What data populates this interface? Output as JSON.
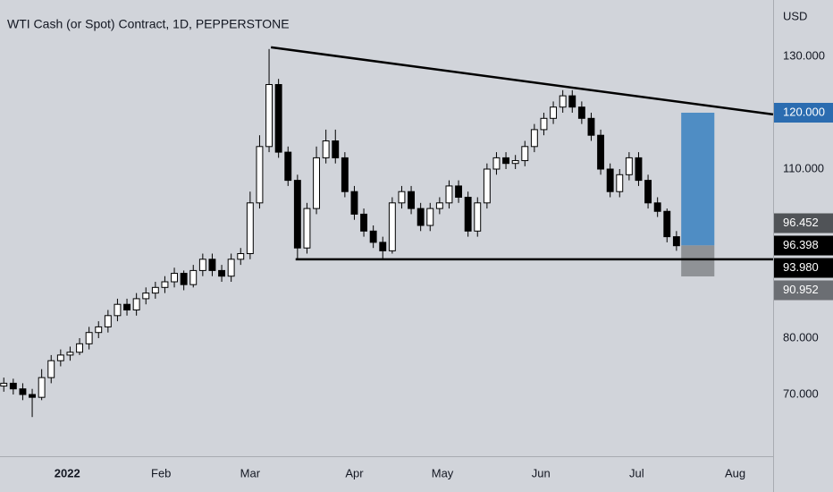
{
  "chart_data": {
    "type": "candlestick",
    "title": "WTI Cash (or Spot) Contract, 1D, PEPPERSTONE",
    "currency": "USD",
    "open": [
      71.5,
      72,
      71,
      70,
      69.5,
      73,
      76,
      77,
      77.5,
      79,
      81,
      82,
      84,
      86,
      85,
      87,
      88,
      89,
      90,
      91.5,
      89.5,
      92,
      94,
      92,
      91,
      94,
      95,
      104,
      114,
      125,
      113,
      108,
      96,
      103,
      112,
      115,
      112,
      106,
      102,
      99,
      97,
      95.5,
      104,
      106,
      103,
      100,
      103,
      104,
      107,
      105,
      99,
      104,
      110,
      112,
      111,
      111.5,
      114,
      117,
      119,
      121,
      123,
      121,
      119,
      116,
      110,
      106,
      109,
      112,
      108,
      104,
      102.5,
      98
    ],
    "high": [
      73,
      72.8,
      72,
      71,
      74.5,
      77,
      78,
      78.5,
      80,
      82,
      83,
      85,
      87,
      87,
      88,
      89,
      90,
      91,
      92.5,
      92,
      93,
      95,
      95,
      93,
      95,
      96,
      106,
      116,
      131.3,
      126,
      114,
      109,
      104,
      114,
      117,
      117,
      113,
      107,
      103,
      100,
      98,
      105,
      107,
      107,
      104,
      104,
      105,
      108,
      108,
      106,
      105,
      111,
      113,
      113,
      112.5,
      115,
      118,
      120,
      122,
      124,
      124,
      122,
      120,
      117,
      111,
      110,
      113,
      113,
      109,
      105,
      103,
      99
    ],
    "low": [
      70.5,
      70,
      69,
      66,
      69,
      72,
      75,
      76,
      77,
      78,
      80,
      81,
      83,
      84,
      84,
      86,
      87,
      88,
      89,
      88.5,
      89,
      91,
      91,
      90,
      90,
      93,
      94,
      103,
      113,
      112,
      107,
      94,
      95,
      102,
      111,
      111,
      105,
      101,
      98,
      96,
      93.9,
      95,
      103,
      102,
      99,
      99,
      102,
      103,
      104,
      98,
      98,
      103,
      109,
      110,
      110,
      110.5,
      113,
      116,
      118,
      120,
      120,
      118,
      115,
      109,
      105,
      105,
      108,
      107,
      103,
      101.5,
      97,
      95.5
    ],
    "close": [
      72,
      71,
      70,
      69.5,
      73,
      76,
      77,
      77.5,
      79,
      81,
      82,
      84,
      86,
      85,
      87,
      88,
      89,
      90,
      91.5,
      89.5,
      92,
      94,
      92,
      91,
      94,
      95,
      104,
      114,
      125,
      113,
      108,
      96,
      103,
      112,
      115,
      112,
      106,
      102,
      99,
      97,
      95.5,
      104,
      106,
      103,
      100,
      103,
      104,
      107,
      105,
      99,
      104,
      110,
      112,
      111,
      111.5,
      114,
      117,
      119,
      121,
      123,
      121,
      119,
      116,
      110,
      106,
      109,
      112,
      108,
      104,
      102.5,
      98,
      96.4
    ],
    "up_color": "#ffffff",
    "down_color": "#000000",
    "xlim": [
      -0.4,
      81.2
    ],
    "xticks": [
      {
        "value": 6.7,
        "label": "2022"
      },
      {
        "value": 16.6,
        "label": "Feb"
      },
      {
        "value": 26,
        "label": "Mar"
      },
      {
        "value": 37,
        "label": "Apr"
      },
      {
        "value": 46.3,
        "label": "May"
      },
      {
        "value": 56.7,
        "label": "Jun"
      },
      {
        "value": 66.8,
        "label": "Jul"
      },
      {
        "value": 77.2,
        "label": "Aug"
      }
    ],
    "ylim": [
      59.05,
      140
    ],
    "yticks": [
      {
        "value": 130,
        "label": "130.000"
      },
      {
        "value": 110,
        "label": "110.000"
      },
      {
        "value": 80,
        "label": "80.000"
      },
      {
        "value": 70,
        "label": "70.000"
      }
    ],
    "grid": false,
    "trendlines": [
      {
        "x": [
          28.2,
          81.2
        ],
        "y": [
          131.6,
          119.7
        ],
        "color": "#000000"
      },
      {
        "x": [
          30.8,
          81.2
        ],
        "y": [
          93.98,
          93.98
        ],
        "color": "#000000"
      }
    ],
    "position": {
      "x": [
        71.5,
        75
      ],
      "entry": 96.452,
      "target": 120,
      "stop": 90.952,
      "target_color": "#4f8dc4",
      "stop_color": "#8f9296"
    },
    "price_labels": [
      {
        "value": 120,
        "label": "120.000",
        "color": "#2b6cb0"
      },
      {
        "value": 96.452,
        "label": "96.452",
        "color": "#505357"
      },
      {
        "value": 96.398,
        "label": "96.398",
        "color": "#000000"
      },
      {
        "value": 93.98,
        "label": "93.980",
        "color": "#000000"
      },
      {
        "value": 90.952,
        "label": "90.952",
        "color": "#6b6e73"
      }
    ]
  }
}
